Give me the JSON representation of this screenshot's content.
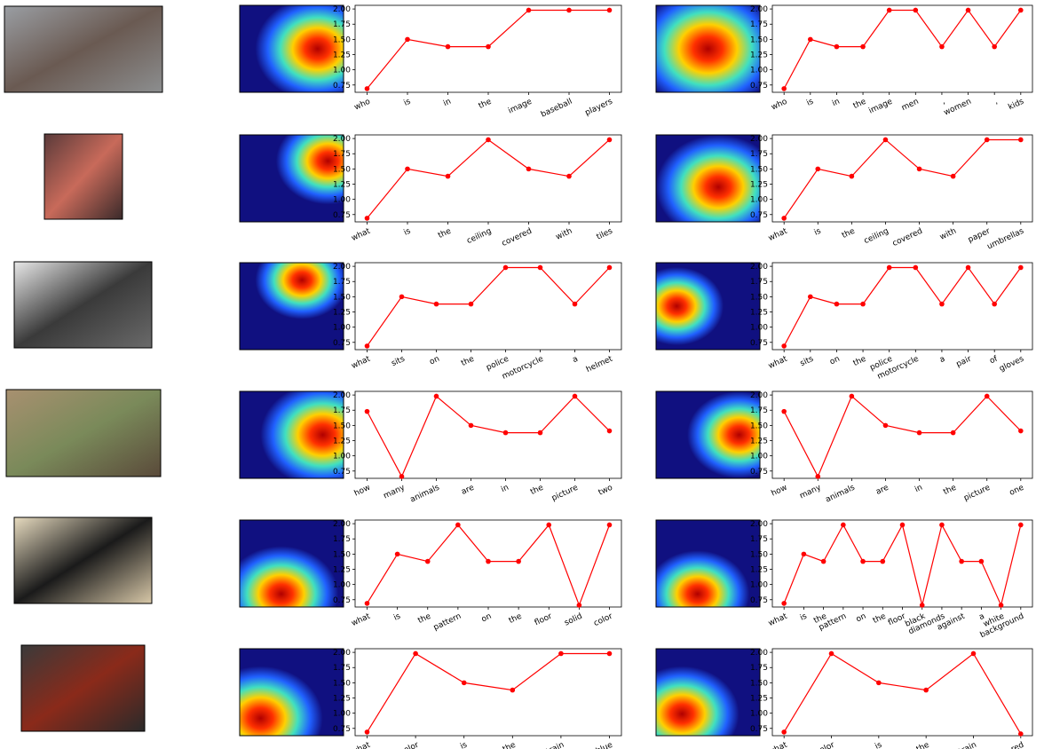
{
  "chart_data": [
    {
      "type": "line",
      "categories": [
        "who",
        "is",
        "in",
        "the",
        "image",
        "baseball",
        "players"
      ],
      "values": [
        0.69,
        1.5,
        1.38,
        1.38,
        1.98,
        1.98,
        1.98
      ],
      "color": "#ff0000",
      "ylim": [
        0.63,
        2.06
      ],
      "yticks": [
        0.75,
        {
          "value": 1,
          "label": "1.00"
        },
        1.25,
        {
          "value": 1.5,
          "label": "1.50"
        },
        1.75,
        {
          "value": 2,
          "label": "2.00"
        }
      ]
    },
    {
      "type": "line",
      "categories": [
        "who",
        "is",
        "in",
        "the",
        "image",
        "men",
        ",",
        "women",
        ",",
        "kids"
      ],
      "values": [
        0.69,
        1.5,
        1.38,
        1.38,
        1.98,
        1.98,
        1.38,
        1.98,
        1.38,
        1.98
      ],
      "color": "#ff0000",
      "ylim": [
        0.63,
        2.06
      ],
      "yticks": [
        0.75,
        {
          "value": 1,
          "label": "1.00"
        },
        1.25,
        {
          "value": 1.5,
          "label": "1.50"
        },
        1.75,
        {
          "value": 2,
          "label": "2.00"
        }
      ]
    },
    {
      "type": "line",
      "categories": [
        "what",
        "is",
        "the",
        "ceiling",
        "covered",
        "with",
        "tiles"
      ],
      "values": [
        0.69,
        1.5,
        1.38,
        1.98,
        1.5,
        1.38,
        1.98
      ],
      "color": "#ff0000",
      "ylim": [
        0.63,
        2.06
      ],
      "yticks": [
        0.75,
        {
          "value": 1,
          "label": "1.00"
        },
        1.25,
        {
          "value": 1.5,
          "label": "1.50"
        },
        1.75,
        {
          "value": 2,
          "label": "2.00"
        }
      ]
    },
    {
      "type": "line",
      "categories": [
        "what",
        "is",
        "the",
        "ceiling",
        "covered",
        "with",
        "paper",
        "umbrellas"
      ],
      "values": [
        0.69,
        1.5,
        1.38,
        1.98,
        1.5,
        1.38,
        1.98,
        1.98
      ],
      "color": "#ff0000",
      "ylim": [
        0.63,
        2.06
      ],
      "yticks": [
        0.75,
        {
          "value": 1,
          "label": "1.00"
        },
        1.25,
        {
          "value": 1.5,
          "label": "1.50"
        },
        1.75,
        {
          "value": 2,
          "label": "2.00"
        }
      ]
    },
    {
      "type": "line",
      "categories": [
        "what",
        "sits",
        "on",
        "the",
        "police",
        "motorcycle",
        "a",
        "helmet"
      ],
      "values": [
        0.69,
        1.5,
        1.38,
        1.38,
        1.98,
        1.98,
        1.38,
        1.98
      ],
      "color": "#ff0000",
      "ylim": [
        0.63,
        2.06
      ],
      "yticks": [
        0.75,
        {
          "value": 1,
          "label": "1.00"
        },
        1.25,
        {
          "value": 1.5,
          "label": "1.50"
        },
        1.75,
        {
          "value": 2,
          "label": "2.00"
        }
      ]
    },
    {
      "type": "line",
      "categories": [
        "what",
        "sits",
        "on",
        "the",
        "police",
        "motorcycle",
        "a",
        "pair",
        "of",
        "gloves"
      ],
      "values": [
        0.69,
        1.5,
        1.38,
        1.38,
        1.98,
        1.98,
        1.38,
        1.98,
        1.38,
        1.98
      ],
      "color": "#ff0000",
      "ylim": [
        0.63,
        2.06
      ],
      "yticks": [
        0.75,
        {
          "value": 1,
          "label": "1.00"
        },
        1.25,
        {
          "value": 1.5,
          "label": "1.50"
        },
        1.75,
        {
          "value": 2,
          "label": "2.00"
        }
      ]
    },
    {
      "type": "line",
      "categories": [
        "how",
        "many",
        "animals",
        "are",
        "in",
        "the",
        "picture",
        "two"
      ],
      "values": [
        1.73,
        0.66,
        1.98,
        1.5,
        1.38,
        1.38,
        1.98,
        1.41
      ],
      "color": "#ff0000",
      "ylim": [
        0.63,
        2.06
      ],
      "yticks": [
        0.75,
        {
          "value": 1,
          "label": "1.00"
        },
        1.25,
        {
          "value": 1.5,
          "label": "1.50"
        },
        1.75,
        {
          "value": 2,
          "label": "2.00"
        }
      ]
    },
    {
      "type": "line",
      "categories": [
        "how",
        "many",
        "animals",
        "are",
        "in",
        "the",
        "picture",
        "one"
      ],
      "values": [
        1.73,
        0.66,
        1.98,
        1.5,
        1.38,
        1.38,
        1.98,
        1.41
      ],
      "color": "#ff0000",
      "ylim": [
        0.63,
        2.06
      ],
      "yticks": [
        0.75,
        {
          "value": 1,
          "label": "1.00"
        },
        1.25,
        {
          "value": 1.5,
          "label": "1.50"
        },
        1.75,
        {
          "value": 2,
          "label": "2.00"
        }
      ]
    },
    {
      "type": "line",
      "categories": [
        "what",
        "is",
        "the",
        "pattern",
        "on",
        "the",
        "floor",
        "solid",
        "color"
      ],
      "values": [
        0.69,
        1.5,
        1.38,
        1.98,
        1.38,
        1.38,
        1.98,
        0.66,
        1.98
      ],
      "color": "#ff0000",
      "ylim": [
        0.63,
        2.06
      ],
      "yticks": [
        0.75,
        {
          "value": 1,
          "label": "1.00"
        },
        1.25,
        {
          "value": 1.5,
          "label": "1.50"
        },
        1.75,
        {
          "value": 2,
          "label": "2.00"
        }
      ]
    },
    {
      "type": "line",
      "categories": [
        "what",
        "is",
        "the",
        "pattern",
        "on",
        "the",
        "floor",
        "black",
        "diamonds",
        "against",
        "a",
        "white",
        "background"
      ],
      "values": [
        0.69,
        1.5,
        1.38,
        1.98,
        1.38,
        1.38,
        1.98,
        0.66,
        1.98,
        1.38,
        1.38,
        0.66,
        1.98
      ],
      "color": "#ff0000",
      "ylim": [
        0.63,
        2.06
      ],
      "yticks": [
        0.75,
        {
          "value": 1,
          "label": "1.00"
        },
        1.25,
        {
          "value": 1.5,
          "label": "1.50"
        },
        1.75,
        {
          "value": 2,
          "label": "2.00"
        }
      ]
    },
    {
      "type": "line",
      "categories": [
        "what",
        "color",
        "is",
        "the",
        "train",
        "blue"
      ],
      "values": [
        0.69,
        1.98,
        1.5,
        1.38,
        1.98,
        1.98
      ],
      "color": "#ff0000",
      "ylim": [
        0.63,
        2.06
      ],
      "yticks": [
        0.75,
        {
          "value": 1,
          "label": "1.00"
        },
        1.25,
        {
          "value": 1.5,
          "label": "1.50"
        },
        1.75,
        {
          "value": 2,
          "label": "2.00"
        }
      ]
    },
    {
      "type": "line",
      "categories": [
        "what",
        "color",
        "is",
        "the",
        "train",
        "red"
      ],
      "values": [
        0.69,
        1.98,
        1.5,
        1.38,
        1.98,
        0.66
      ],
      "color": "#ff0000",
      "ylim": [
        0.63,
        2.06
      ],
      "yticks": [
        0.75,
        {
          "value": 1,
          "label": "1.00"
        },
        1.25,
        {
          "value": 1.5,
          "label": "1.50"
        },
        1.75,
        {
          "value": 2,
          "label": "2.00"
        }
      ]
    }
  ]
}
